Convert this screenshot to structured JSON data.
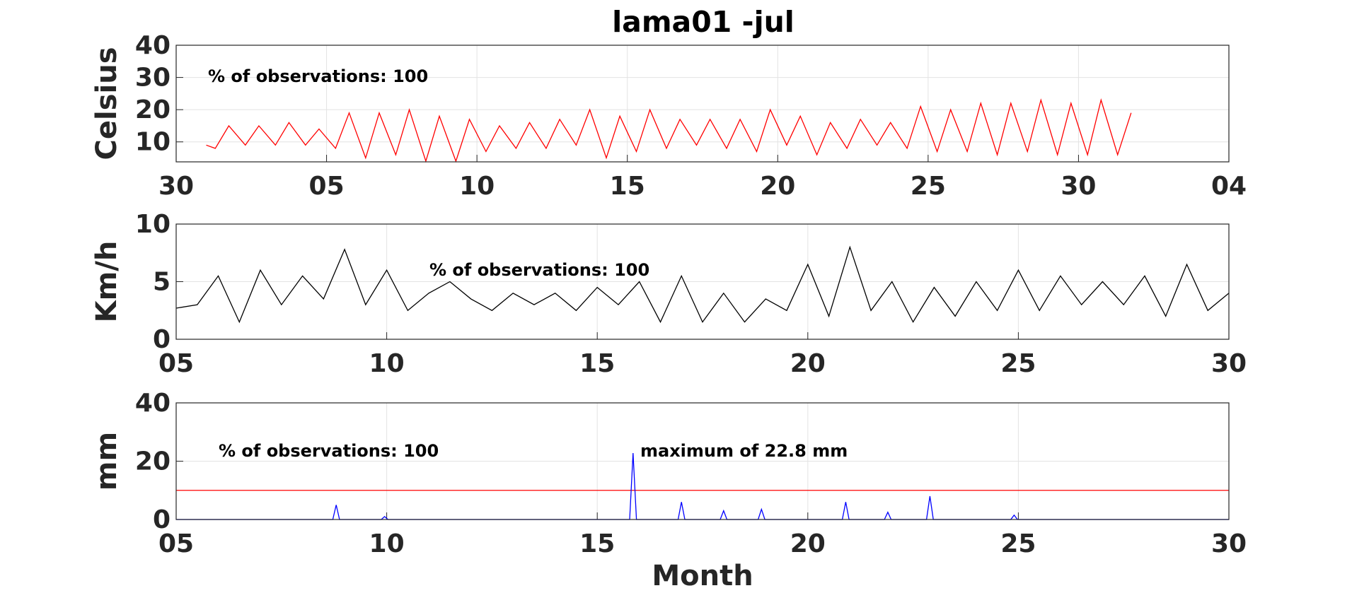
{
  "chart_data": [
    {
      "type": "line",
      "title": "lama01 -jul",
      "ylabel": "Celsius",
      "annotations": [
        "% of observations: 100"
      ],
      "color": "#ff0000",
      "grid": true,
      "xlim": [
        0,
        35
      ],
      "xticks": [
        {
          "value": 0,
          "label": "30"
        },
        {
          "value": 5,
          "label": "05"
        },
        10,
        15,
        20,
        25,
        30,
        {
          "value": 35,
          "label": "04"
        }
      ],
      "ylim": [
        3.8,
        40
      ],
      "yticks": [
        10,
        20,
        30,
        40
      ],
      "x": [
        1,
        1.3,
        1.75,
        2.3,
        2.75,
        3.3,
        3.75,
        4.3,
        4.75,
        5.3,
        5.75,
        6.3,
        6.75,
        7.3,
        7.75,
        8.3,
        8.75,
        9.3,
        9.75,
        10.3,
        10.75,
        11.3,
        11.75,
        12.3,
        12.75,
        13.3,
        13.75,
        14.3,
        14.75,
        15.3,
        15.75,
        16.3,
        16.75,
        17.3,
        17.75,
        18.3,
        18.75,
        19.3,
        19.75,
        20.3,
        20.75,
        21.3,
        21.75,
        22.3,
        22.75,
        23.3,
        23.75,
        24.3,
        24.75,
        25.3,
        25.75,
        26.3,
        26.75,
        27.3,
        27.75,
        28.3,
        28.75,
        29.3,
        29.75,
        30.3,
        30.75,
        31.3,
        31.75
      ],
      "values": [
        9,
        8,
        15,
        9,
        15,
        9,
        16,
        9,
        14,
        8,
        19,
        5,
        19,
        6,
        20,
        4,
        18,
        4,
        17,
        7,
        15,
        8,
        16,
        8,
        17,
        9,
        20,
        5,
        18,
        7,
        20,
        8,
        17,
        9,
        17,
        8,
        17,
        7,
        20,
        9,
        18,
        6,
        16,
        8,
        17,
        9,
        16,
        8,
        21,
        7,
        20,
        7,
        22,
        6,
        22,
        7,
        23,
        6,
        22,
        6,
        23,
        6,
        19
      ]
    },
    {
      "type": "line",
      "ylabel": "Km/h",
      "annotations": [
        "% of observations: 100"
      ],
      "color": "#000000",
      "grid": true,
      "xlim": [
        5,
        30
      ],
      "xticks": [
        {
          "value": 5,
          "label": "05"
        },
        10,
        15,
        20,
        25,
        30
      ],
      "ylim": [
        0,
        10
      ],
      "yticks": [
        0,
        5,
        10
      ],
      "x": [
        5,
        5.5,
        6,
        6.5,
        7,
        7.5,
        8,
        8.5,
        9,
        9.5,
        10,
        10.5,
        11,
        11.5,
        12,
        12.5,
        13,
        13.5,
        14,
        14.5,
        15,
        15.5,
        16,
        16.5,
        17,
        17.5,
        18,
        18.5,
        19,
        19.5,
        20,
        20.5,
        21,
        21.5,
        22,
        22.5,
        23,
        23.5,
        24,
        24.5,
        25,
        25.5,
        26,
        26.5,
        27,
        27.5,
        28,
        28.5,
        29,
        29.5,
        30
      ],
      "values": [
        2.7,
        3,
        5.5,
        1.5,
        6,
        3,
        5.5,
        3.5,
        7.8,
        3,
        6,
        2.5,
        4,
        5,
        3.5,
        2.5,
        4,
        3,
        4,
        2.5,
        4.5,
        3,
        5,
        1.5,
        5.5,
        1.5,
        4,
        1.5,
        3.5,
        2.5,
        6.5,
        2,
        8,
        2.5,
        5,
        1.5,
        4.5,
        2,
        5,
        2.5,
        6,
        2.5,
        5.5,
        3,
        5,
        3,
        5.5,
        2,
        6.5,
        2.5,
        4
      ]
    },
    {
      "type": "line",
      "ylabel": "mm",
      "xlabel": "Month",
      "annotations": [
        "% of observations: 100",
        "maximum of 22.8 mm"
      ],
      "color": "#0000ff",
      "grid": true,
      "hline": 10,
      "hline_color": "#ff0000",
      "xlim": [
        5,
        30
      ],
      "xticks": [
        {
          "value": 5,
          "label": "05"
        },
        10,
        15,
        20,
        25,
        30
      ],
      "ylim": [
        0,
        40
      ],
      "yticks": [
        0,
        20,
        40
      ],
      "x": [
        5,
        8.72,
        8.8,
        8.88,
        9.87,
        9.95,
        10.03,
        15.77,
        15.85,
        15.93,
        16.92,
        17,
        17.08,
        17.92,
        18,
        18.08,
        18.82,
        18.9,
        18.98,
        20.82,
        20.9,
        20.98,
        21.82,
        21.9,
        21.98,
        22.82,
        22.9,
        22.98,
        24.82,
        24.9,
        24.98,
        30
      ],
      "values": [
        0,
        0,
        5,
        0,
        0,
        1,
        0,
        0,
        22.8,
        0,
        0,
        6,
        0,
        0,
        3,
        0,
        0,
        3.5,
        0,
        0,
        6,
        0,
        0,
        2.5,
        0,
        0,
        8,
        0,
        0,
        1.5,
        0,
        0
      ]
    }
  ]
}
